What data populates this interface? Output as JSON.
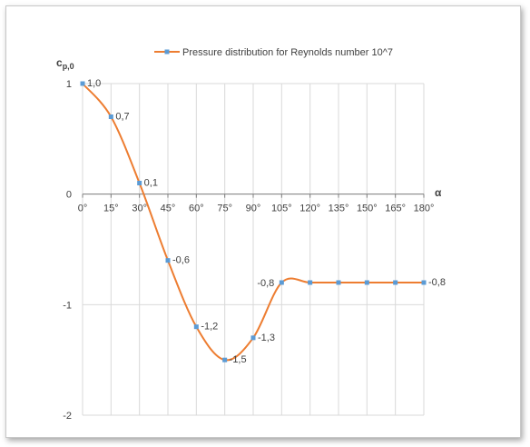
{
  "chart_data": {
    "type": "line",
    "legend": "Pressure distribution for Reynolds number 10^7",
    "legend_position": "top",
    "ylabel_main": "c",
    "ylabel_sub": "p,0",
    "xlabel": "α",
    "x": [
      "0°",
      "15°",
      "30°",
      "45°",
      "60°",
      "75°",
      "90°",
      "105°",
      "120°",
      "135°",
      "150°",
      "165°",
      "180°"
    ],
    "series": [
      {
        "name": "Pressure distribution for Reynolds number 10^7",
        "values": [
          1.0,
          0.7,
          0.1,
          -0.6,
          -1.2,
          -1.5,
          -1.3,
          -0.8,
          -0.8,
          -0.8,
          -0.8,
          -0.8,
          -0.8
        ],
        "color": "#ED7D31",
        "marker_color": "#5B9BD5"
      }
    ],
    "data_labels": [
      {
        "index": 0,
        "text": "1,0"
      },
      {
        "index": 1,
        "text": "0,7"
      },
      {
        "index": 2,
        "text": "0,1"
      },
      {
        "index": 3,
        "text": "-0,6"
      },
      {
        "index": 4,
        "text": "-1,2"
      },
      {
        "index": 5,
        "text": "-1,5"
      },
      {
        "index": 6,
        "text": "-1,3"
      },
      {
        "index": 7,
        "text": "-0,8"
      },
      {
        "index": 12,
        "text": "-0,8"
      }
    ],
    "ylim": [
      -2,
      1
    ],
    "yticks": [
      1,
      0,
      -1,
      -2
    ],
    "ytick_labels": [
      "1",
      "0",
      "-1",
      "-2"
    ],
    "grid": true
  }
}
